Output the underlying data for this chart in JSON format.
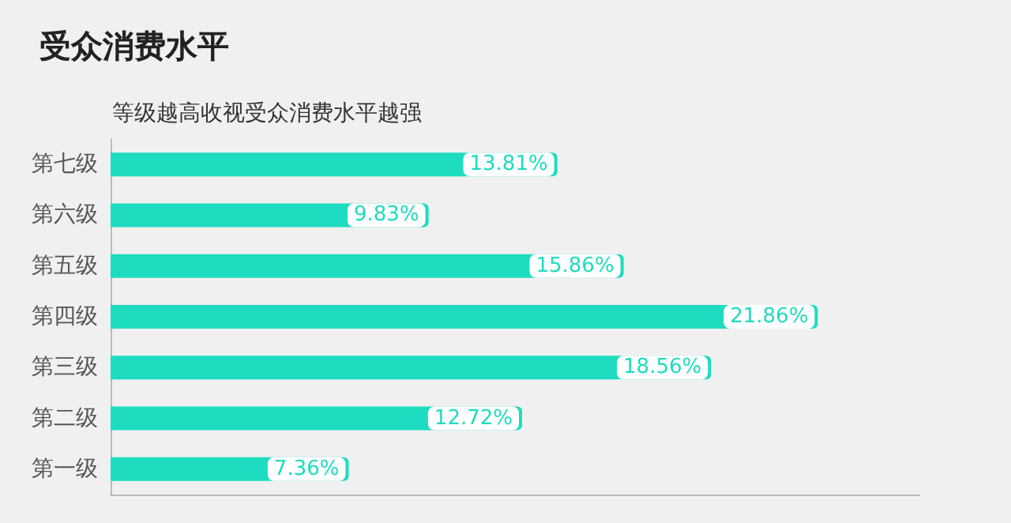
{
  "chart_data": {
    "type": "bar",
    "orientation": "horizontal",
    "title": "受众消费水平",
    "subtitle": "等级越高收视受众消费水平越强",
    "categories": [
      "第七级",
      "第六级",
      "第五级",
      "第四级",
      "第三级",
      "第二级",
      "第一级"
    ],
    "values": [
      13.81,
      9.83,
      15.86,
      21.86,
      18.56,
      12.72,
      7.36
    ],
    "value_labels": [
      "13.81%",
      "9.83%",
      "15.86%",
      "21.86%",
      "18.56%",
      "12.72%",
      "7.36%"
    ],
    "color": "#1ddcc0"
  }
}
